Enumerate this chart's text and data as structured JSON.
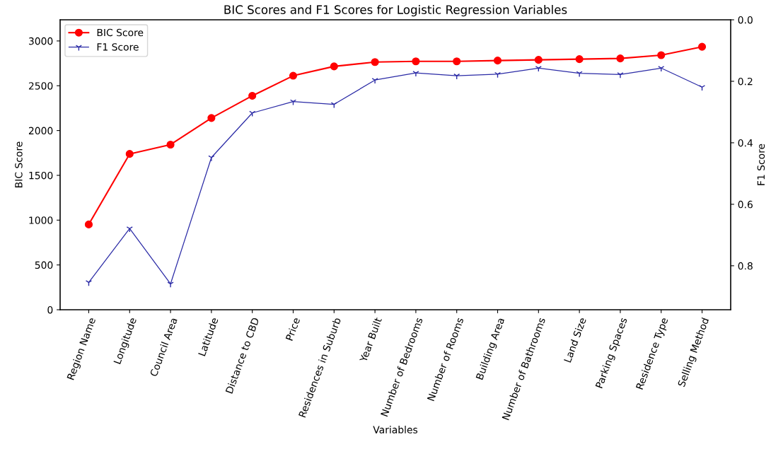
{
  "chart_data": {
    "type": "line",
    "title": "BIC Scores and F1 Scores for Logistic Regression Variables",
    "xlabel": "Variables",
    "ylabel": "BIC Score",
    "y2label": "F1 Score",
    "categories": [
      "Region Name",
      "Longitude",
      "Council Area",
      "Latitude",
      "Distance to CBD",
      "Price",
      "Residences in Suburb",
      "Year Built",
      "Number of Bedrooms",
      "Number of Rooms",
      "Building Area",
      "Number of Bathrooms",
      "Land Size",
      "Parking Spaces",
      "Residence Type",
      "Selling Method"
    ],
    "series": [
      {
        "name": "BIC Score",
        "color": "#ff0000",
        "marker": "circle",
        "values": [
          952,
          1739,
          1843,
          2140,
          2388,
          2612,
          2716,
          2764,
          2772,
          2772,
          2781,
          2789,
          2797,
          2805,
          2841,
          2935
        ]
      },
      {
        "name": "F1 Score",
        "color": "#2b2ba6",
        "marker": "cross",
        "axis": "y2",
        "values": [
          0.854,
          0.679,
          0.859,
          0.448,
          0.303,
          0.266,
          0.275,
          0.196,
          0.173,
          0.182,
          0.177,
          0.157,
          0.174,
          0.178,
          0.157,
          0.219
        ]
      }
    ],
    "ylim": [
      0,
      3236
    ],
    "yticks": [
      0,
      500,
      1000,
      1500,
      2000,
      2500,
      3000
    ],
    "y2lim": [
      0.943,
      0.0
    ],
    "y2ticks": [
      {
        "value": 0.0,
        "label": "0.0"
      },
      {
        "value": 0.2,
        "label": "0.2"
      },
      {
        "value": 0.4,
        "label": "0.4"
      },
      {
        "value": 0.6,
        "label": "0.6"
      },
      {
        "value": 0.8,
        "label": "0.8"
      }
    ],
    "grid": false,
    "legend": "top left"
  }
}
